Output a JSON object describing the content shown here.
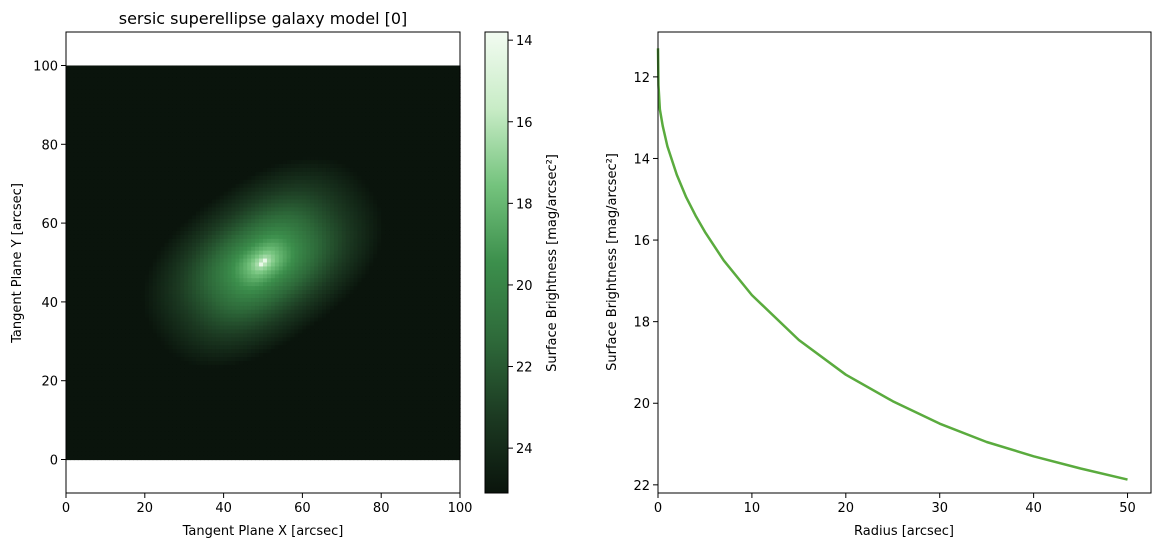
{
  "chart_data": [
    {
      "type": "heatmap",
      "title": "sersic superellipse galaxy model [0]",
      "xlabel": "Tangent Plane X [arcsec]",
      "ylabel": "Tangent Plane Y [arcsec]",
      "xlim": [
        0,
        100
      ],
      "ylim": [
        -8.5,
        108.5
      ],
      "image_extent": [
        0,
        100,
        0,
        100
      ],
      "xticks": [
        0,
        20,
        40,
        60,
        80,
        100
      ],
      "yticks": [
        0,
        20,
        40,
        60,
        80,
        100
      ],
      "center": [
        50,
        50
      ],
      "position_angle_deg": 35,
      "axis_ratio": 0.62,
      "peak_value": 14.0,
      "colorbar": {
        "label": "Surface Brightness [mag/arcsec²]",
        "range": [
          25.1,
          13.8
        ],
        "ticks": [
          24,
          22,
          20,
          18,
          16,
          14
        ],
        "colormap": [
          "#0a140c",
          "#1c3a22",
          "#2e6a3a",
          "#3c8f4c",
          "#74c37d",
          "#c8ecc6",
          "#f2fbf1"
        ],
        "inverted": true
      },
      "grid": false
    },
    {
      "type": "line",
      "xlabel": "Radius [arcsec]",
      "ylabel": "Surface Brightness [mag/arcsec²]",
      "xlim": [
        0,
        52.5
      ],
      "ylim": [
        22.2,
        10.9
      ],
      "y_inverted": true,
      "xticks": [
        0,
        10,
        20,
        30,
        40,
        50
      ],
      "yticks": [
        12,
        14,
        16,
        18,
        20,
        22
      ],
      "series": [
        {
          "color": "#5aab3e",
          "x": [
            0,
            0.05,
            0.2,
            0.5,
            1,
            2,
            3,
            4,
            5,
            7,
            10,
            15,
            20,
            25,
            30,
            35,
            40,
            45,
            50
          ],
          "y": [
            11.3,
            12.2,
            12.8,
            13.2,
            13.7,
            14.4,
            14.95,
            15.4,
            15.8,
            16.5,
            17.35,
            18.45,
            19.3,
            19.95,
            20.5,
            20.95,
            21.3,
            21.6,
            21.87
          ]
        }
      ],
      "grid": false
    }
  ]
}
